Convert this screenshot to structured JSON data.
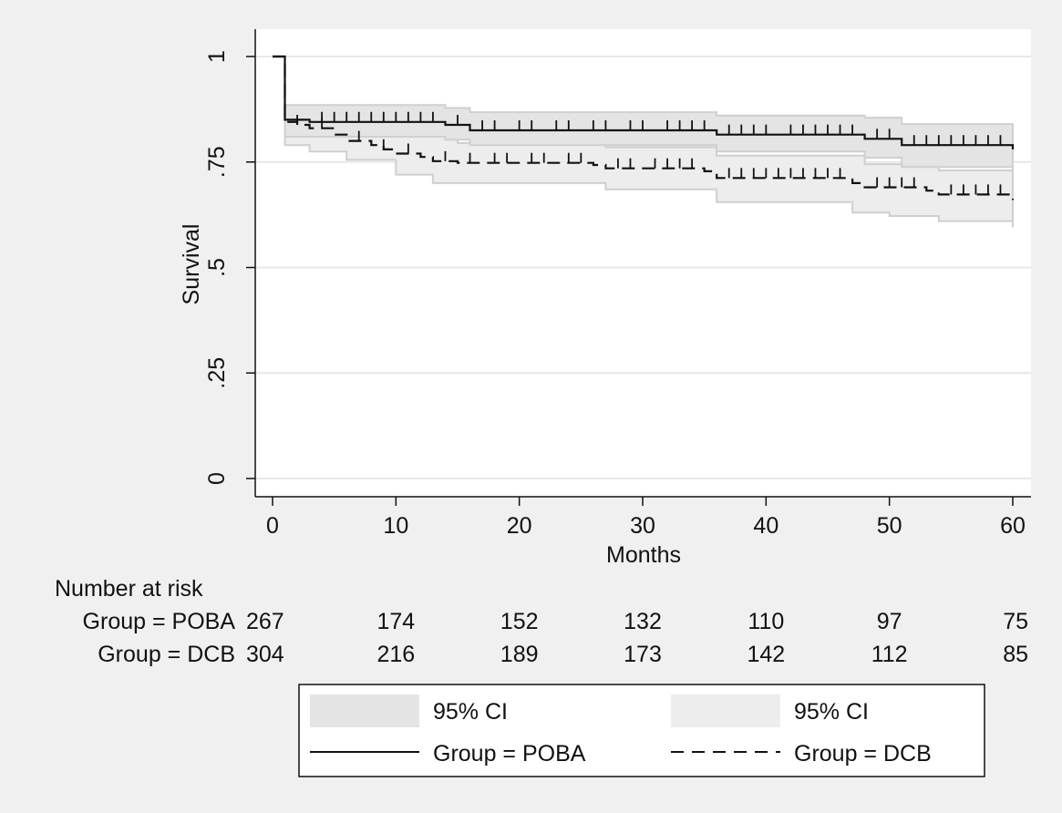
{
  "chart_data": {
    "type": "line",
    "subtype": "kaplan-meier",
    "xlabel": "Months",
    "ylabel": "Survival",
    "xlim": [
      0,
      60
    ],
    "ylim": [
      0,
      1
    ],
    "x_ticks": [
      0,
      10,
      20,
      30,
      40,
      50,
      60
    ],
    "y_ticks": [
      0,
      0.25,
      0.5,
      0.75,
      1
    ],
    "y_tick_labels": [
      "0",
      ".25",
      ".5",
      ".75",
      "1"
    ],
    "grid": "horizontal",
    "colors": {
      "background": "#f0f0f0",
      "plot_background": "#ffffff",
      "grid": "#e8e8e8",
      "ci_poba_fill": "#e4e4e4",
      "ci_dcb_fill": "#ededed",
      "ci_border": "#cfcfcf",
      "line": "#111111"
    },
    "series": [
      {
        "name": "Group = POBA",
        "line_style": "solid",
        "steps": [
          [
            0,
            1.0
          ],
          [
            1,
            0.85
          ],
          [
            3,
            0.845
          ],
          [
            14,
            0.838
          ],
          [
            16,
            0.825
          ],
          [
            36,
            0.815
          ],
          [
            48,
            0.805
          ],
          [
            51,
            0.79
          ],
          [
            60,
            0.78
          ]
        ],
        "ci_upper": [
          [
            0,
            1.0
          ],
          [
            1,
            0.885
          ],
          [
            14,
            0.878
          ],
          [
            16,
            0.868
          ],
          [
            36,
            0.86
          ],
          [
            48,
            0.855
          ],
          [
            51,
            0.84
          ],
          [
            60,
            0.84
          ]
        ],
        "ci_lower": [
          [
            0,
            1.0
          ],
          [
            1,
            0.81
          ],
          [
            14,
            0.803
          ],
          [
            16,
            0.79
          ],
          [
            36,
            0.775
          ],
          [
            48,
            0.76
          ],
          [
            51,
            0.738
          ],
          [
            60,
            0.72
          ]
        ],
        "censor_x": [
          4,
          5,
          6,
          7,
          8,
          9,
          10,
          11,
          12,
          13,
          15,
          17,
          18,
          20,
          21,
          23,
          24,
          26,
          27,
          29,
          30,
          32,
          33,
          34,
          35,
          37,
          38,
          39,
          40,
          42,
          43,
          44,
          45,
          46,
          47,
          49,
          50,
          52,
          53,
          54,
          55,
          56,
          57,
          58,
          59
        ]
      },
      {
        "name": "Group = DCB",
        "line_style": "dashed",
        "steps": [
          [
            0,
            1.0
          ],
          [
            1,
            0.845
          ],
          [
            2,
            0.838
          ],
          [
            3,
            0.83
          ],
          [
            5,
            0.815
          ],
          [
            6,
            0.8
          ],
          [
            8,
            0.79
          ],
          [
            9,
            0.78
          ],
          [
            10,
            0.77
          ],
          [
            12,
            0.762
          ],
          [
            13,
            0.752
          ],
          [
            15,
            0.748
          ],
          [
            26,
            0.743
          ],
          [
            27,
            0.735
          ],
          [
            35,
            0.728
          ],
          [
            36,
            0.712
          ],
          [
            47,
            0.7
          ],
          [
            48,
            0.69
          ],
          [
            53,
            0.682
          ],
          [
            54,
            0.673
          ],
          [
            60,
            0.66
          ]
        ],
        "ci_upper": [
          [
            0,
            1.0
          ],
          [
            1,
            0.84
          ],
          [
            5,
            0.82
          ],
          [
            10,
            0.81
          ],
          [
            15,
            0.795
          ],
          [
            27,
            0.785
          ],
          [
            36,
            0.765
          ],
          [
            48,
            0.745
          ],
          [
            54,
            0.73
          ],
          [
            60,
            0.715
          ]
        ],
        "ci_lower": [
          [
            0,
            1.0
          ],
          [
            1,
            0.79
          ],
          [
            3,
            0.775
          ],
          [
            6,
            0.755
          ],
          [
            10,
            0.72
          ],
          [
            13,
            0.7
          ],
          [
            27,
            0.685
          ],
          [
            36,
            0.655
          ],
          [
            47,
            0.63
          ],
          [
            50,
            0.622
          ],
          [
            54,
            0.61
          ],
          [
            60,
            0.595
          ]
        ],
        "censor_x": [
          2,
          4,
          7,
          9,
          11,
          14,
          16,
          18,
          19,
          21,
          22,
          24,
          25,
          28,
          29,
          31,
          32,
          33,
          34,
          37,
          38,
          39,
          40,
          41,
          42,
          43,
          44,
          45,
          46,
          49,
          50,
          51,
          52,
          55,
          56,
          57,
          58,
          59
        ]
      }
    ],
    "risk_table": {
      "title": "Number at risk",
      "times": [
        0,
        10,
        20,
        30,
        40,
        50,
        60
      ],
      "rows": [
        {
          "label": "Group = POBA",
          "values": [
            267,
            174,
            152,
            132,
            110,
            97,
            75
          ]
        },
        {
          "label": "Group = DCB",
          "values": [
            304,
            216,
            189,
            173,
            142,
            112,
            85
          ]
        }
      ]
    },
    "legend": {
      "placement": "bottom",
      "items": [
        {
          "kind": "ci",
          "label": "95% CI"
        },
        {
          "kind": "ci",
          "label": "95% CI"
        },
        {
          "kind": "solid",
          "label": "Group = POBA"
        },
        {
          "kind": "dashed",
          "label": "Group = DCB"
        }
      ]
    }
  }
}
